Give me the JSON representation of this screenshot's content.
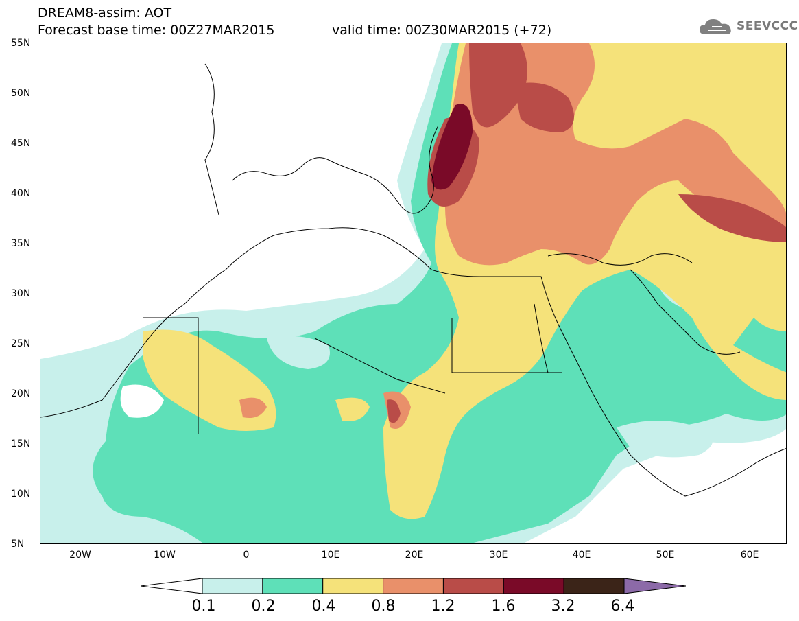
{
  "header": {
    "title": "DREAM8-assim: AOT",
    "base_time": "Forecast base time: 00Z27MAR2015",
    "valid_time": "valid time: 00Z30MAR2015 (+72)"
  },
  "logo": {
    "text": "SEEVCCC",
    "icon": "cloud-icon"
  },
  "map": {
    "region": "North Africa, Middle East, Europe",
    "lat_labels": [
      "55N",
      "50N",
      "45N",
      "40N",
      "35N",
      "30N",
      "25N",
      "20N",
      "15N",
      "10N",
      "5N"
    ],
    "lon_labels": [
      "20W",
      "10W",
      "0",
      "10E",
      "20E",
      "30E",
      "40E",
      "50E",
      "60E"
    ]
  },
  "legend": {
    "colors": [
      "#ffffff",
      "#c8f0eb",
      "#5ee0b8",
      "#f5e27a",
      "#e9906a",
      "#b94c48",
      "#7a0a28",
      "#3b2418",
      "#8c6aa8"
    ],
    "labels": [
      "0.1",
      "0.2",
      "0.4",
      "0.8",
      "1.2",
      "1.6",
      "3.2",
      "6.4"
    ]
  }
}
